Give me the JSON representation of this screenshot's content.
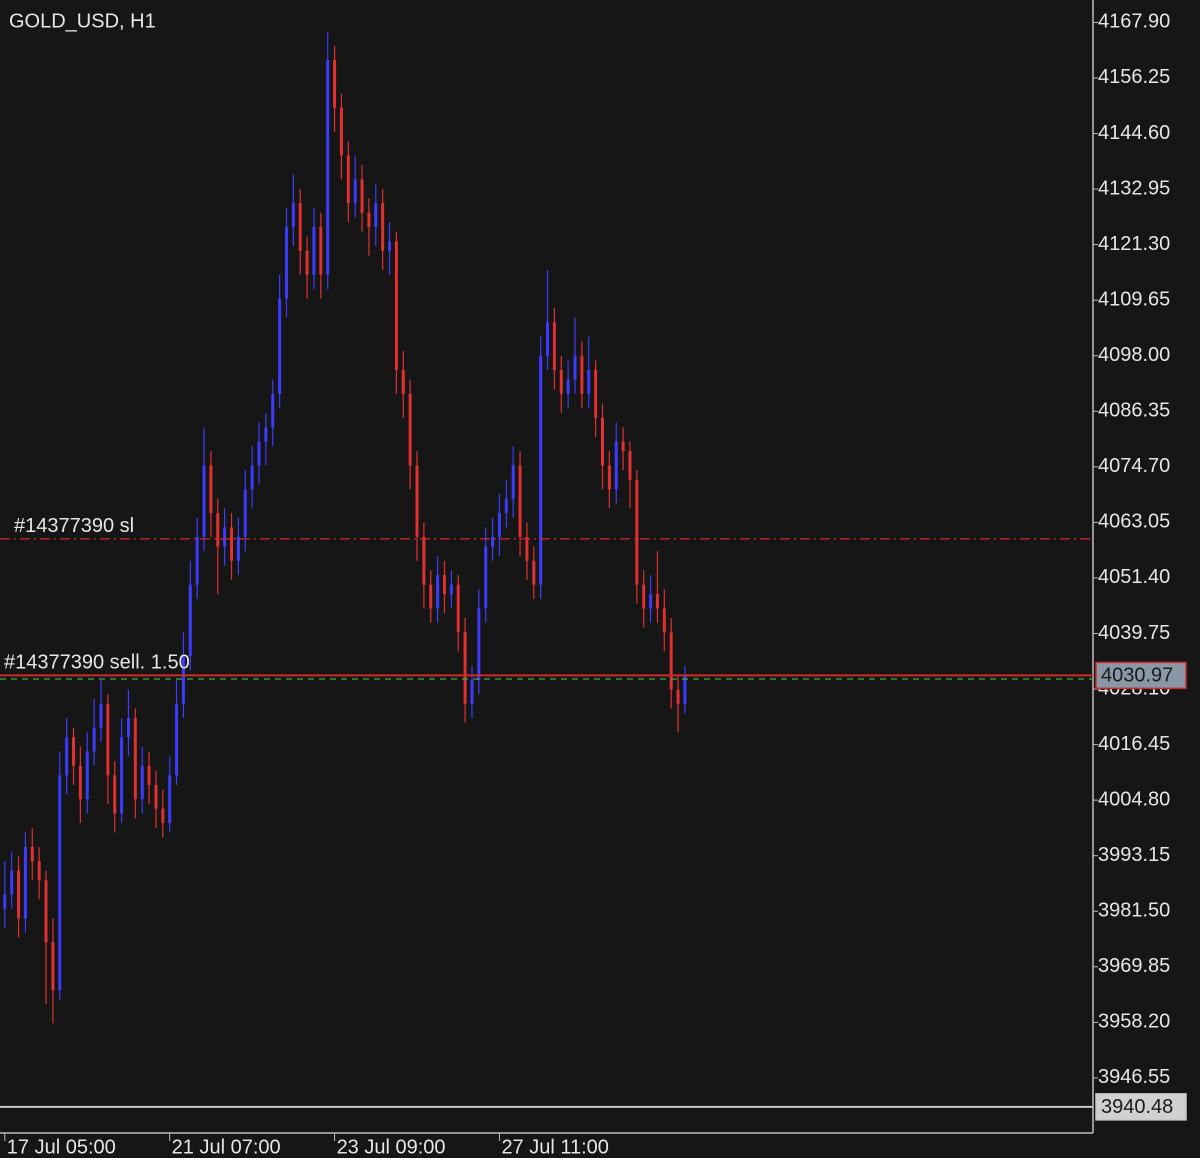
{
  "chart_data": {
    "type": "candlestick",
    "title": "GOLD_USD, H1",
    "up_color": "#3c3cff",
    "down_color": "#e23030",
    "ylim": [
      3935.0,
      4172.6
    ],
    "yticks": [
      {
        "value": 4167.9,
        "label": "4167.90"
      },
      {
        "value": 4156.25,
        "label": "4156.25"
      },
      {
        "value": 4144.6,
        "label": "4144.60"
      },
      {
        "value": 4132.95,
        "label": "4132.95"
      },
      {
        "value": 4121.3,
        "label": "4121.30"
      },
      {
        "value": 4109.65,
        "label": "4109.65"
      },
      {
        "value": 4098.0,
        "label": "4098.00"
      },
      {
        "value": 4086.35,
        "label": "4086.35"
      },
      {
        "value": 4074.7,
        "label": "4074.70"
      },
      {
        "value": 4063.05,
        "label": "4063.05"
      },
      {
        "value": 4051.4,
        "label": "4051.40"
      },
      {
        "value": 4039.75,
        "label": "4039.75"
      },
      {
        "value": 4028.1,
        "label": "4028.10"
      },
      {
        "value": 4016.45,
        "label": "4016.45"
      },
      {
        "value": 4004.8,
        "label": "4004.80"
      },
      {
        "value": 3993.15,
        "label": "3993.15"
      },
      {
        "value": 3981.5,
        "label": "3981.50"
      },
      {
        "value": 3969.85,
        "label": "3969.85"
      },
      {
        "value": 3958.2,
        "label": "3958.20"
      },
      {
        "value": 3946.55,
        "label": "3946.55"
      }
    ],
    "xlim": [
      -0.7,
      158.4
    ],
    "xticks": [
      {
        "value": 0,
        "label": "17 Jul 05:00"
      },
      {
        "value": 24,
        "label": "21 Jul 07:00"
      },
      {
        "value": 48,
        "label": "23 Jul 09:00"
      },
      {
        "value": 72,
        "label": "27 Jul 11:00"
      }
    ],
    "ohlc": [
      [
        3982,
        3992,
        3978,
        3985
      ],
      [
        3985,
        3994,
        3982,
        3990
      ],
      [
        3990,
        3993,
        3976,
        3980
      ],
      [
        3980,
        3998,
        3977,
        3995
      ],
      [
        3995,
        3999,
        3988,
        3992
      ],
      [
        3992,
        3995,
        3984,
        3988
      ],
      [
        3988,
        3990,
        3962,
        3975
      ],
      [
        3975,
        3980,
        3958,
        3965
      ],
      [
        3965,
        4015,
        3963,
        4010
      ],
      [
        4010,
        4022,
        4006,
        4018
      ],
      [
        4018,
        4020,
        4008,
        4012
      ],
      [
        4012,
        4016,
        4000,
        4005
      ],
      [
        4005,
        4019,
        4002,
        4015
      ],
      [
        4015,
        4026,
        4012,
        4020
      ],
      [
        4020,
        4030,
        4017,
        4025
      ],
      [
        4025,
        4027,
        4004,
        4010
      ],
      [
        4010,
        4013,
        3998,
        4002
      ],
      [
        4002,
        4022,
        4000,
        4018
      ],
      [
        4018,
        4028,
        4014,
        4022
      ],
      [
        4022,
        4024,
        4001,
        4005
      ],
      [
        4005,
        4016,
        4002,
        4012
      ],
      [
        4012,
        4015,
        4004,
        4008
      ],
      [
        4008,
        4011,
        3999,
        4003
      ],
      [
        4003,
        4007,
        3997,
        4000
      ],
      [
        4000,
        4014,
        3998,
        4010
      ],
      [
        4010,
        4030,
        4008,
        4025
      ],
      [
        4025,
        4040,
        4022,
        4035
      ],
      [
        4035,
        4055,
        4032,
        4050
      ],
      [
        4050,
        4064,
        4047,
        4060
      ],
      [
        4060,
        4083,
        4057,
        4075
      ],
      [
        4075,
        4078,
        4060,
        4065
      ],
      [
        4065,
        4068,
        4048,
        4058
      ],
      [
        4058,
        4066,
        4054,
        4062
      ],
      [
        4062,
        4065,
        4051,
        4055
      ],
      [
        4055,
        4064,
        4052,
        4060
      ],
      [
        4060,
        4074,
        4057,
        4070
      ],
      [
        4070,
        4079,
        4066,
        4075
      ],
      [
        4075,
        4084,
        4071,
        4080
      ],
      [
        4080,
        4086,
        4075,
        4083
      ],
      [
        4083,
        4093,
        4079,
        4090
      ],
      [
        4090,
        4115,
        4087,
        4110
      ],
      [
        4110,
        4129,
        4106,
        4125
      ],
      [
        4125,
        4136,
        4121,
        4130
      ],
      [
        4130,
        4133,
        4115,
        4120
      ],
      [
        4120,
        4123,
        4110,
        4115
      ],
      [
        4115,
        4129,
        4112,
        4125
      ],
      [
        4125,
        4128,
        4110,
        4115
      ],
      [
        4115,
        4166,
        4112,
        4160
      ],
      [
        4160,
        4163,
        4145,
        4150
      ],
      [
        4150,
        4153,
        4135,
        4140
      ],
      [
        4140,
        4143,
        4126,
        4130
      ],
      [
        4130,
        4140,
        4127,
        4135
      ],
      [
        4135,
        4138,
        4124,
        4128
      ],
      [
        4128,
        4131,
        4119,
        4125
      ],
      [
        4125,
        4134,
        4121,
        4130
      ],
      [
        4130,
        4133,
        4116,
        4120
      ],
      [
        4120,
        4126,
        4115,
        4122
      ],
      [
        4122,
        4124,
        4090,
        4095
      ],
      [
        4095,
        4099,
        4085,
        4090
      ],
      [
        4090,
        4093,
        4070,
        4075
      ],
      [
        4075,
        4078,
        4055,
        4060
      ],
      [
        4060,
        4063,
        4045,
        4050
      ],
      [
        4050,
        4053,
        4042,
        4045
      ],
      [
        4045,
        4056,
        4042,
        4052
      ],
      [
        4052,
        4055,
        4044,
        4048
      ],
      [
        4048,
        4053,
        4045,
        4050
      ],
      [
        4050,
        4052,
        4036,
        4040
      ],
      [
        4040,
        4043,
        4021,
        4025
      ],
      [
        4025,
        4033,
        4022,
        4030
      ],
      [
        4030,
        4049,
        4027,
        4045
      ],
      [
        4045,
        4062,
        4042,
        4058
      ],
      [
        4058,
        4064,
        4055,
        4060
      ],
      [
        4060,
        4069,
        4056,
        4065
      ],
      [
        4065,
        4072,
        4062,
        4068
      ],
      [
        4068,
        4079,
        4064,
        4075
      ],
      [
        4075,
        4078,
        4056,
        4060
      ],
      [
        4060,
        4063,
        4051,
        4055
      ],
      [
        4055,
        4058,
        4047,
        4050
      ],
      [
        4050,
        4102,
        4047,
        4098
      ],
      [
        4098,
        4116,
        4095,
        4105
      ],
      [
        4105,
        4108,
        4091,
        4095
      ],
      [
        4095,
        4098,
        4086,
        4090
      ],
      [
        4090,
        4097,
        4087,
        4093
      ],
      [
        4093,
        4106,
        4090,
        4098
      ],
      [
        4098,
        4101,
        4087,
        4090
      ],
      [
        4090,
        4102,
        4087,
        4095
      ],
      [
        4095,
        4097,
        4081,
        4085
      ],
      [
        4085,
        4088,
        4070,
        4075
      ],
      [
        4075,
        4078,
        4066,
        4070
      ],
      [
        4070,
        4084,
        4067,
        4080
      ],
      [
        4080,
        4083,
        4074,
        4078
      ],
      [
        4078,
        4080,
        4066,
        4072
      ],
      [
        4072,
        4074,
        4046,
        4050
      ],
      [
        4050,
        4053,
        4041,
        4045
      ],
      [
        4045,
        4052,
        4042,
        4048
      ],
      [
        4048,
        4057,
        4042,
        4045
      ],
      [
        4045,
        4049,
        4036,
        4040
      ],
      [
        4040,
        4043,
        4024,
        4028
      ],
      [
        4028,
        4031,
        4019,
        4025
      ],
      [
        4025,
        4033,
        4023,
        4031
      ]
    ],
    "levels": [
      {
        "label": "#14377390 sl",
        "value": 4059.6,
        "color": "#d02828",
        "style": "dashdot"
      },
      {
        "label": "#14377390 sell. 1.50",
        "value": 4030.97,
        "axis_label": "4030.97",
        "color": "#d02828",
        "style": "solid"
      },
      {
        "value": 4030.2,
        "color": "#2fb84a",
        "style": "dash"
      },
      {
        "value": 3940.48,
        "axis_label": "3940.48",
        "color": "#c8c8c8",
        "style": "solid"
      }
    ]
  }
}
